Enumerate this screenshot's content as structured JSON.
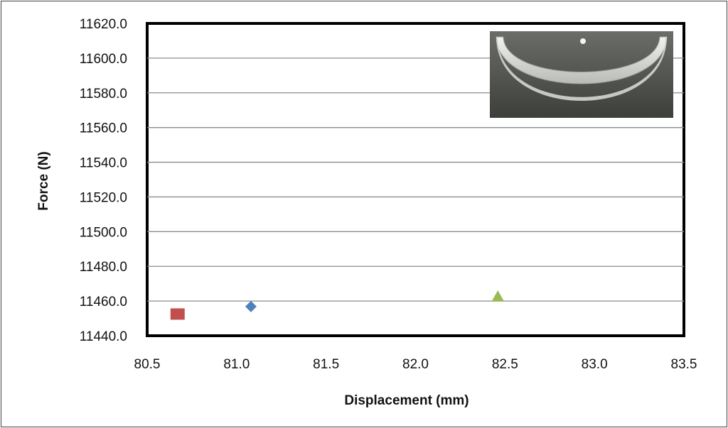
{
  "chart_data": {
    "type": "scatter",
    "xlabel": "Displacement (mm)",
    "ylabel": "Force (N)",
    "xlim": [
      80.5,
      83.5
    ],
    "ylim": [
      11440.0,
      11620.0
    ],
    "x_ticks": [
      "80.5",
      "81.0",
      "81.5",
      "82.0",
      "82.5",
      "83.0",
      "83.5"
    ],
    "y_ticks": [
      "11440.0",
      "11460.0",
      "11480.0",
      "11500.0",
      "11520.0",
      "11540.0",
      "11560.0",
      "11580.0",
      "11600.0",
      "11620.0"
    ],
    "grid": "horizontal",
    "series": [
      {
        "marker": "diamond",
        "color": "#4f81bd",
        "x": 81.08,
        "y": 11456.8
      },
      {
        "marker": "square",
        "color": "#c0504d",
        "x": 80.67,
        "y": 11452.5
      },
      {
        "marker": "triangle",
        "color": "#9bbb59",
        "x": 82.46,
        "y": 11462.5
      }
    ],
    "inset_image": "curved-specimen-photo"
  }
}
